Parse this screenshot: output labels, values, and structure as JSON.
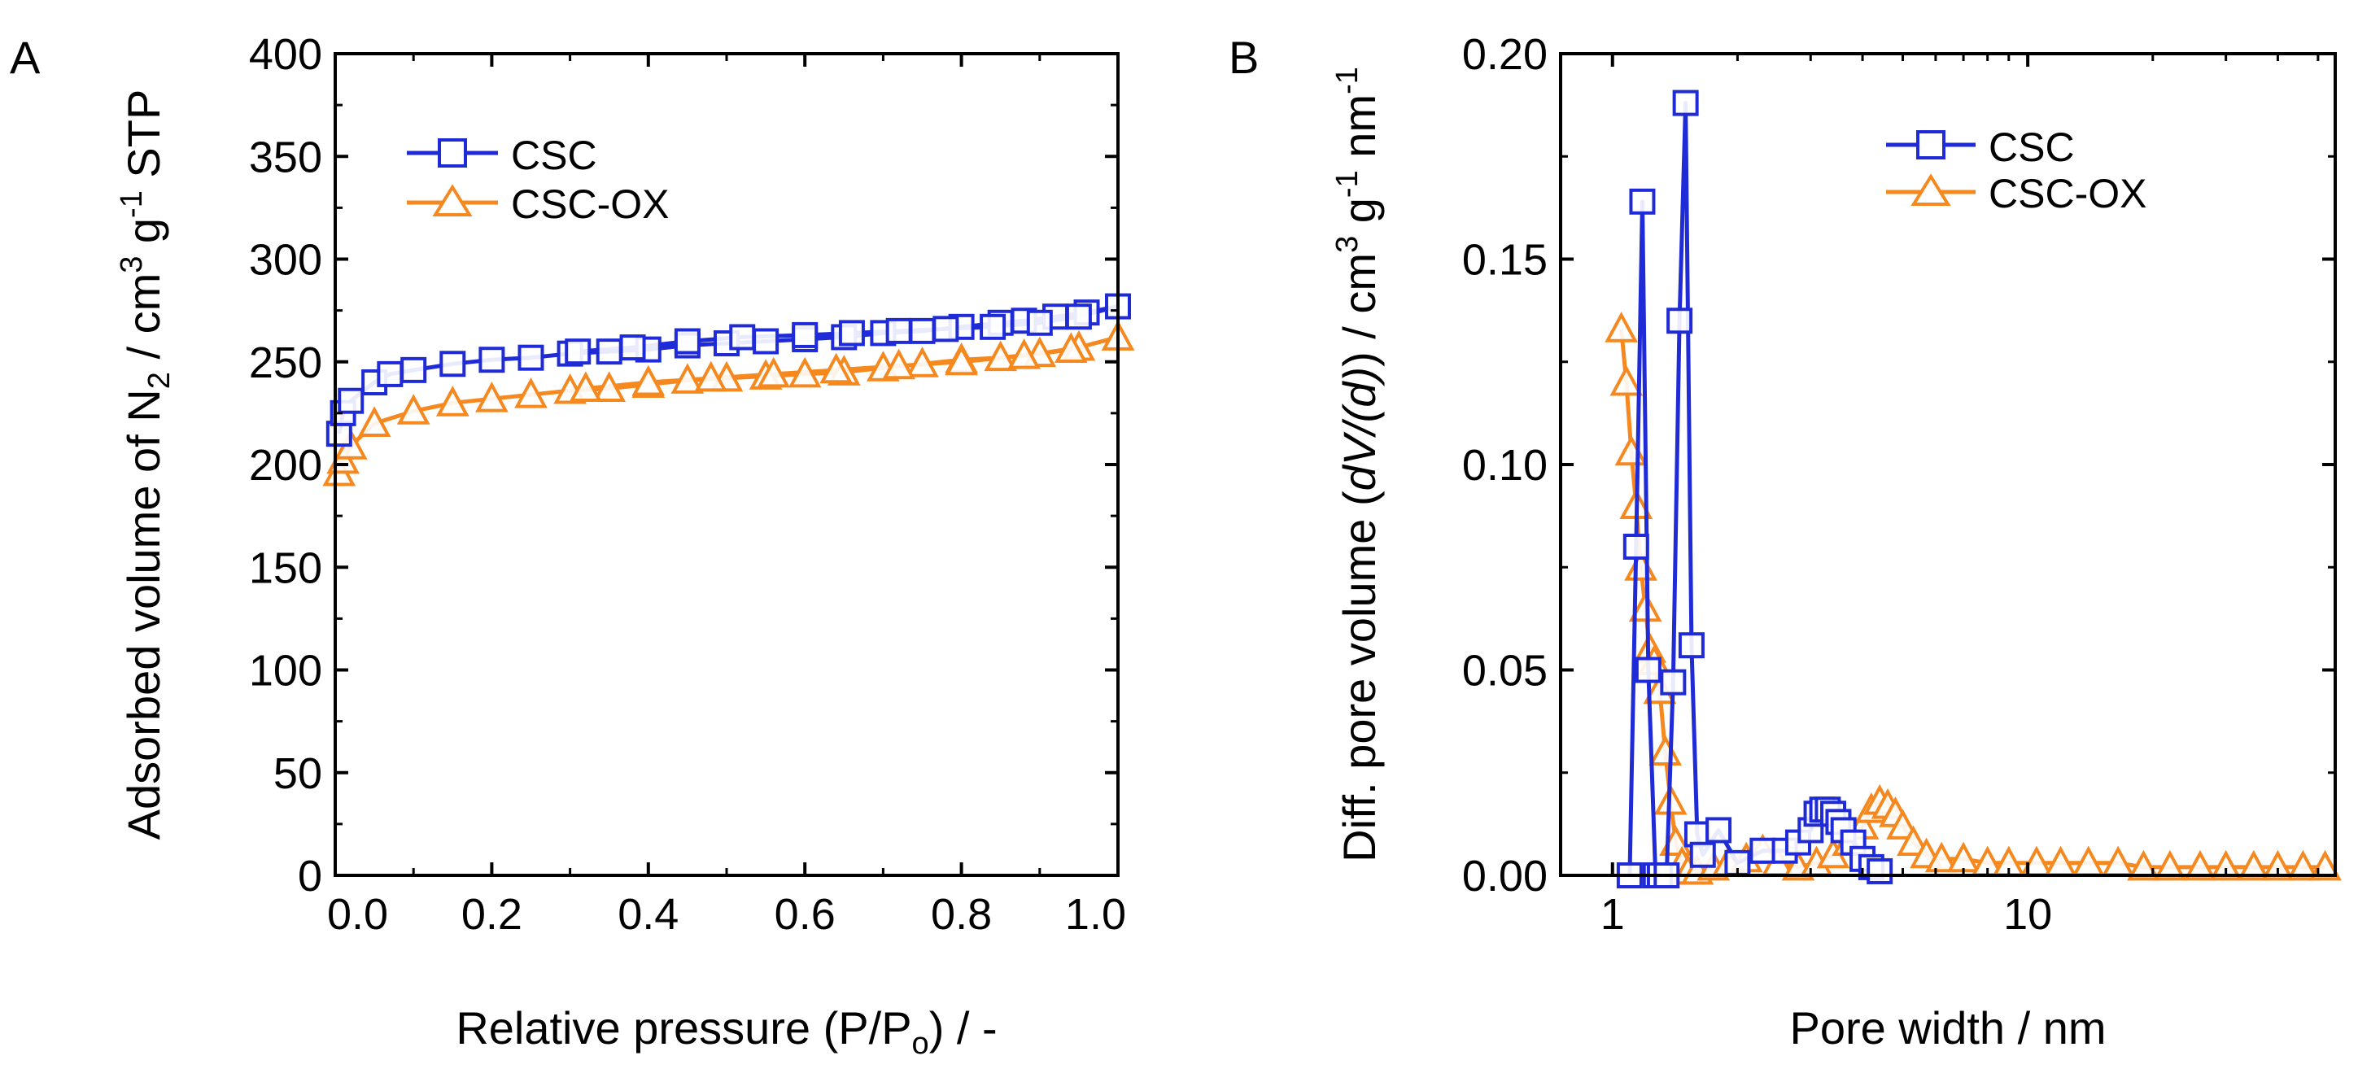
{
  "chart_data": [
    {
      "type": "scatter",
      "panel_label": "A",
      "title": "",
      "xlabel": "Relative pressure (P/P₀) / -",
      "ylabel": "Adsorbed volume of N₂ / cm³ g⁻¹ STP",
      "xlim": [
        0.0,
        1.0
      ],
      "ylim": [
        0,
        400
      ],
      "x_ticks": [
        "0.0",
        "0.2",
        "0.4",
        "0.6",
        "0.8",
        "1.0"
      ],
      "y_ticks": [
        "0",
        "50",
        "100",
        "150",
        "200",
        "250",
        "300",
        "350",
        "400"
      ],
      "legend_position": "top-left",
      "series": [
        {
          "name": "CSC",
          "color": "#1f2bd6",
          "marker": "square",
          "x": [
            0.005,
            0.01,
            0.02,
            0.05,
            0.07,
            0.1,
            0.15,
            0.2,
            0.25,
            0.3,
            0.35,
            0.4,
            0.45,
            0.5,
            0.55,
            0.6,
            0.65,
            0.7,
            0.75,
            0.8,
            0.85,
            0.88,
            0.92,
            0.96,
            1.0,
            0.95,
            0.9,
            0.84,
            0.78,
            0.72,
            0.66,
            0.6,
            0.52,
            0.45,
            0.38,
            0.31
          ],
          "y": [
            215,
            225,
            231,
            240,
            244,
            246,
            249,
            251,
            252,
            254,
            255,
            256,
            258,
            259,
            260,
            261,
            262,
            264,
            265,
            267,
            269,
            270,
            272,
            274,
            277,
            272,
            269,
            267,
            266,
            265,
            264,
            263,
            262,
            260,
            257,
            255
          ]
        },
        {
          "name": "CSC-OX",
          "color": "#f5891f",
          "marker": "triangle",
          "x": [
            0.005,
            0.01,
            0.02,
            0.05,
            0.1,
            0.15,
            0.2,
            0.25,
            0.3,
            0.35,
            0.4,
            0.45,
            0.5,
            0.55,
            0.6,
            0.65,
            0.7,
            0.75,
            0.8,
            0.85,
            0.9,
            0.95,
            1.0,
            0.94,
            0.88,
            0.8,
            0.72,
            0.64,
            0.56,
            0.48,
            0.4,
            0.32
          ],
          "y": [
            196,
            202,
            209,
            220,
            226,
            230,
            232,
            234,
            236,
            237,
            239,
            241,
            242,
            243,
            244,
            245,
            247,
            249,
            251,
            252,
            254,
            257,
            262,
            256,
            253,
            250,
            248,
            246,
            244,
            242,
            240,
            237
          ]
        }
      ]
    },
    {
      "type": "line",
      "panel_label": "B",
      "title": "",
      "xlabel": "Pore width / nm",
      "ylabel": "Diff. pore volume (dV/(d)) / cm³ g⁻¹ nm⁻¹",
      "xscale": "log",
      "xlim": [
        0.75,
        55
      ],
      "ylim": [
        0.0,
        0.2
      ],
      "x_ticks": [
        "1",
        "10"
      ],
      "y_ticks": [
        "0.00",
        "0.05",
        "0.10",
        "0.15",
        "0.20"
      ],
      "legend_position": "top-right",
      "series": [
        {
          "name": "CSC",
          "color": "#1f2bd6",
          "marker": "square",
          "x": [
            1.1,
            1.14,
            1.18,
            1.22,
            1.27,
            1.3,
            1.35,
            1.4,
            1.45,
            1.5,
            1.55,
            1.6,
            1.65,
            1.8,
            2.0,
            2.3,
            2.6,
            2.8,
            3.0,
            3.1,
            3.2,
            3.3,
            3.4,
            3.5,
            3.6,
            3.8,
            4.0,
            4.2,
            4.4
          ],
          "y": [
            0.0,
            0.08,
            0.164,
            0.05,
            0.0,
            0.0,
            0.0,
            0.047,
            0.135,
            0.188,
            0.056,
            0.01,
            0.005,
            0.011,
            0.003,
            0.006,
            0.006,
            0.008,
            0.011,
            0.015,
            0.016,
            0.016,
            0.015,
            0.013,
            0.011,
            0.008,
            0.004,
            0.002,
            0.001
          ]
        },
        {
          "name": "CSC-OX",
          "color": "#f5891f",
          "marker": "triangle",
          "x": [
            1.05,
            1.08,
            1.11,
            1.14,
            1.17,
            1.2,
            1.23,
            1.26,
            1.3,
            1.34,
            1.38,
            1.42,
            1.47,
            1.52,
            1.6,
            1.75,
            1.9,
            2.1,
            2.3,
            2.5,
            2.8,
            3.1,
            3.4,
            3.7,
            4.0,
            4.2,
            4.4,
            4.6,
            4.8,
            5.0,
            5.3,
            5.7,
            6.2,
            7.0,
            8.0,
            9.0,
            10.5,
            12.0,
            14.0,
            16.5,
            19.0,
            22.0,
            26.0,
            30.0,
            35.0,
            40.0,
            46.0,
            52.0
          ],
          "y": [
            0.133,
            0.12,
            0.103,
            0.09,
            0.075,
            0.065,
            0.055,
            0.052,
            0.045,
            0.03,
            0.018,
            0.008,
            0.003,
            0.001,
            0.001,
            0.002,
            0.003,
            0.004,
            0.006,
            0.003,
            0.002,
            0.003,
            0.005,
            0.008,
            0.012,
            0.016,
            0.018,
            0.017,
            0.015,
            0.012,
            0.008,
            0.005,
            0.004,
            0.004,
            0.003,
            0.003,
            0.003,
            0.003,
            0.003,
            0.003,
            0.002,
            0.002,
            0.002,
            0.002,
            0.002,
            0.002,
            0.002,
            0.002
          ]
        }
      ]
    }
  ]
}
